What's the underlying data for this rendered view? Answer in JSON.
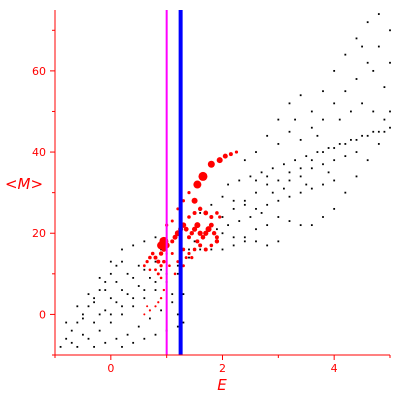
{
  "chart_data": {
    "type": "scatter",
    "xlabel": "E",
    "ylabel": "<M>",
    "xlim": [
      -1.0,
      5.0
    ],
    "ylim": [
      -10,
      75
    ],
    "xticks": [
      0,
      2,
      4
    ],
    "yticks": [
      0,
      20,
      40,
      60
    ],
    "grid": false,
    "colors": {
      "axis": "#ff0000",
      "small_points": "#000000",
      "large_points": "#ff0000",
      "line_1": "#ff00ff",
      "line_2": "#0000ff"
    },
    "vertical_lines": [
      {
        "x": 1.0,
        "color": "#ff00ff"
      },
      {
        "x": 1.25,
        "color": "#0000ff"
      }
    ],
    "series": [
      {
        "color": "#000000",
        "marker": "dot",
        "points": [
          [
            -0.9,
            -8
          ],
          [
            -0.8,
            -6
          ],
          [
            -0.7,
            -4
          ],
          [
            -0.6,
            -2
          ],
          [
            -0.5,
            0
          ],
          [
            -0.4,
            2
          ],
          [
            -0.3,
            4
          ],
          [
            -0.2,
            6
          ],
          [
            -0.1,
            8
          ],
          [
            0.0,
            10
          ],
          [
            0.1,
            12
          ],
          [
            0.2,
            13
          ],
          [
            -0.7,
            -7
          ],
          [
            -0.5,
            -5
          ],
          [
            -0.3,
            -2
          ],
          [
            -0.1,
            1
          ],
          [
            0.1,
            3
          ],
          [
            0.3,
            5
          ],
          [
            0.5,
            7
          ],
          [
            0.7,
            9
          ],
          [
            0.9,
            11
          ],
          [
            -0.6,
            -8
          ],
          [
            -0.4,
            -6
          ],
          [
            -0.2,
            -4
          ],
          [
            0.0,
            -2
          ],
          [
            0.2,
            0
          ],
          [
            0.4,
            2
          ],
          [
            0.6,
            4
          ],
          [
            0.8,
            6
          ],
          [
            1.0,
            8
          ],
          [
            1.2,
            10
          ],
          [
            -0.3,
            -8
          ],
          [
            -0.1,
            -7
          ],
          [
            0.1,
            -6
          ],
          [
            0.3,
            -5
          ],
          [
            0.5,
            -3
          ],
          [
            0.7,
            -1
          ],
          [
            0.9,
            1
          ],
          [
            1.1,
            3
          ],
          [
            1.3,
            5
          ],
          [
            0.2,
            -8
          ],
          [
            0.4,
            -7
          ],
          [
            0.6,
            -6
          ],
          [
            0.8,
            -5
          ],
          [
            1.0,
            -4
          ],
          [
            1.2,
            -3
          ],
          [
            -0.8,
            -2
          ],
          [
            -0.6,
            2
          ],
          [
            -0.4,
            5
          ],
          [
            -0.2,
            9
          ],
          [
            0.0,
            13
          ],
          [
            0.2,
            16
          ],
          [
            0.4,
            17
          ],
          [
            0.6,
            18
          ],
          [
            0.8,
            19
          ],
          [
            -0.5,
            -1
          ],
          [
            -0.3,
            3
          ],
          [
            -0.1,
            6
          ],
          [
            0.1,
            8
          ],
          [
            0.3,
            10
          ],
          [
            0.5,
            12
          ],
          [
            0.7,
            14
          ],
          [
            0.9,
            16
          ],
          [
            0.0,
            4
          ],
          [
            0.2,
            6
          ],
          [
            0.4,
            9
          ],
          [
            0.6,
            11
          ],
          [
            0.8,
            13
          ],
          [
            1.0,
            15
          ],
          [
            1.1,
            5
          ],
          [
            1.2,
            0
          ],
          [
            1.3,
            -2
          ],
          [
            -0.2,
            0
          ],
          [
            0.0,
            0
          ],
          [
            0.2,
            2
          ],
          [
            0.4,
            4
          ],
          [
            0.6,
            6
          ],
          [
            0.8,
            8
          ],
          [
            1.0,
            10
          ],
          [
            1.2,
            12
          ],
          [
            1.4,
            14
          ],
          [
            1.6,
            16
          ],
          [
            1.4,
            16
          ],
          [
            1.5,
            18
          ],
          [
            1.6,
            20
          ],
          [
            1.8,
            22
          ],
          [
            2.0,
            24
          ],
          [
            2.2,
            26
          ],
          [
            2.4,
            28
          ],
          [
            2.6,
            30
          ],
          [
            2.8,
            32
          ],
          [
            3.0,
            33
          ],
          [
            3.2,
            35
          ],
          [
            3.4,
            36
          ],
          [
            3.6,
            38
          ],
          [
            3.8,
            40
          ],
          [
            4.0,
            41
          ],
          [
            4.2,
            42
          ],
          [
            4.4,
            43
          ],
          [
            4.6,
            44
          ],
          [
            4.8,
            45
          ],
          [
            5.0,
            46
          ],
          [
            1.6,
            25
          ],
          [
            1.8,
            27
          ],
          [
            2.0,
            29
          ],
          [
            2.2,
            28
          ],
          [
            2.4,
            27
          ],
          [
            2.6,
            26
          ],
          [
            2.8,
            27
          ],
          [
            3.0,
            28
          ],
          [
            3.2,
            29
          ],
          [
            3.4,
            30
          ],
          [
            3.6,
            31
          ],
          [
            3.8,
            32
          ],
          [
            4.0,
            33
          ],
          [
            2.0,
            20
          ],
          [
            2.2,
            19
          ],
          [
            2.4,
            18
          ],
          [
            2.6,
            18
          ],
          [
            2.8,
            17
          ],
          [
            3.0,
            18
          ],
          [
            1.8,
            16
          ],
          [
            2.0,
            16
          ],
          [
            2.2,
            17
          ],
          [
            2.4,
            19
          ],
          [
            2.6,
            21
          ],
          [
            2.8,
            22
          ],
          [
            2.1,
            32
          ],
          [
            2.3,
            33
          ],
          [
            2.5,
            34
          ],
          [
            2.7,
            35
          ],
          [
            2.9,
            36
          ],
          [
            3.1,
            37
          ],
          [
            3.3,
            38
          ],
          [
            3.5,
            39
          ],
          [
            3.7,
            40
          ],
          [
            3.9,
            41
          ],
          [
            4.1,
            42
          ],
          [
            4.3,
            43
          ],
          [
            4.5,
            44
          ],
          [
            4.7,
            45
          ],
          [
            4.9,
            45
          ],
          [
            2.4,
            38
          ],
          [
            2.6,
            40
          ],
          [
            2.8,
            44
          ],
          [
            3.0,
            48
          ],
          [
            3.2,
            52
          ],
          [
            3.4,
            54
          ],
          [
            3.6,
            50
          ],
          [
            3.8,
            48
          ],
          [
            4.0,
            52
          ],
          [
            4.2,
            55
          ],
          [
            4.4,
            58
          ],
          [
            4.6,
            62
          ],
          [
            4.8,
            66
          ],
          [
            5.0,
            70
          ],
          [
            3.0,
            24
          ],
          [
            3.2,
            23
          ],
          [
            3.4,
            22
          ],
          [
            3.6,
            22
          ],
          [
            3.8,
            24
          ],
          [
            4.0,
            26
          ],
          [
            4.2,
            30
          ],
          [
            4.4,
            34
          ],
          [
            4.6,
            38
          ],
          [
            4.8,
            42
          ],
          [
            5.0,
            50
          ],
          [
            3.2,
            45
          ],
          [
            3.4,
            43
          ],
          [
            3.6,
            46
          ],
          [
            3.8,
            55
          ],
          [
            4.0,
            60
          ],
          [
            4.2,
            64
          ],
          [
            4.4,
            68
          ],
          [
            4.6,
            72
          ],
          [
            4.8,
            74
          ],
          [
            4.5,
            66
          ],
          [
            4.7,
            60
          ],
          [
            4.9,
            56
          ],
          [
            5.0,
            62
          ],
          [
            3.0,
            42
          ],
          [
            3.3,
            48
          ],
          [
            3.7,
            44
          ],
          [
            4.1,
            48
          ],
          [
            4.3,
            50
          ],
          [
            4.5,
            52
          ],
          [
            4.7,
            50
          ],
          [
            4.9,
            48
          ],
          [
            2.9,
            30
          ],
          [
            3.1,
            31
          ],
          [
            3.5,
            32
          ],
          [
            3.9,
            35
          ],
          [
            2.5,
            24
          ],
          [
            2.7,
            25
          ],
          [
            2.3,
            23
          ],
          [
            2.1,
            22
          ],
          [
            1.9,
            21
          ],
          [
            2.6,
            33
          ],
          [
            2.8,
            34
          ],
          [
            3.2,
            33
          ],
          [
            3.4,
            34
          ],
          [
            3.6,
            36
          ],
          [
            3.8,
            37
          ],
          [
            4.0,
            38
          ],
          [
            4.2,
            39
          ],
          [
            4.4,
            40
          ]
        ]
      },
      {
        "color": "#ff0000",
        "marker": "filled-circle",
        "points": [
          [
            0.6,
            12,
            1.4
          ],
          [
            0.65,
            13,
            1.6
          ],
          [
            0.7,
            14,
            1.8
          ],
          [
            0.75,
            15,
            1.8
          ],
          [
            0.8,
            14,
            2
          ],
          [
            0.85,
            13,
            2
          ],
          [
            0.9,
            15,
            2.2
          ],
          [
            0.95,
            16,
            2.4
          ],
          [
            1.0,
            17,
            3
          ],
          [
            0.9,
            17,
            4
          ],
          [
            0.95,
            18,
            4.5
          ],
          [
            0.7,
            11,
            1.3
          ],
          [
            0.8,
            11,
            1.4
          ],
          [
            0.9,
            12,
            1.6
          ],
          [
            0.85,
            10,
            1.5
          ],
          [
            0.95,
            13,
            1.8
          ],
          [
            0.9,
            9,
            1.3
          ],
          [
            0.95,
            6,
            1.2
          ],
          [
            0.9,
            4,
            1.2
          ],
          [
            0.85,
            3,
            1.1
          ],
          [
            0.8,
            2,
            1.1
          ],
          [
            0.7,
            1,
            1.1
          ],
          [
            0.6,
            0,
            1
          ],
          [
            0.65,
            2,
            1
          ],
          [
            1.1,
            18,
            2
          ],
          [
            1.15,
            19,
            2.5
          ],
          [
            1.2,
            20,
            3
          ],
          [
            1.25,
            21,
            2.5
          ],
          [
            1.3,
            22,
            2.8
          ],
          [
            1.35,
            21,
            2.4
          ],
          [
            1.4,
            19,
            2
          ],
          [
            1.45,
            20,
            2.2
          ],
          [
            1.5,
            21,
            2.6
          ],
          [
            1.55,
            22,
            3
          ],
          [
            1.6,
            20,
            2.6
          ],
          [
            1.65,
            19,
            2.3
          ],
          [
            1.7,
            20,
            2.6
          ],
          [
            1.75,
            21,
            3
          ],
          [
            1.8,
            22,
            2.4
          ],
          [
            1.85,
            20,
            2.2
          ],
          [
            1.9,
            19,
            2
          ],
          [
            1.4,
            24,
            1.8
          ],
          [
            1.5,
            25,
            2
          ],
          [
            1.6,
            26,
            2.2
          ],
          [
            1.7,
            25,
            2.4
          ],
          [
            1.8,
            24,
            2
          ],
          [
            1.9,
            25,
            1.8
          ],
          [
            1.95,
            24,
            1.6
          ],
          [
            1.3,
            16,
            1.8
          ],
          [
            1.4,
            15,
            1.6
          ],
          [
            1.5,
            16,
            1.8
          ],
          [
            1.6,
            17,
            2
          ],
          [
            1.7,
            16,
            2
          ],
          [
            1.8,
            17,
            1.8
          ],
          [
            1.9,
            18,
            2.2
          ],
          [
            1.55,
            18,
            2
          ],
          [
            1.45,
            14,
            1.6
          ],
          [
            1.35,
            14,
            1.5
          ],
          [
            1.1,
            15,
            1.5
          ],
          [
            1.2,
            13,
            1.5
          ],
          [
            1.3,
            12,
            1.5
          ],
          [
            1.05,
            12,
            1.3
          ],
          [
            1.15,
            10,
            1.3
          ],
          [
            1.25,
            8,
            1.3
          ],
          [
            1.5,
            28,
            3
          ],
          [
            1.55,
            32,
            4
          ],
          [
            1.65,
            34,
            4.5
          ],
          [
            1.8,
            37,
            3.5
          ],
          [
            1.95,
            38,
            3
          ],
          [
            2.05,
            39,
            2.5
          ],
          [
            2.15,
            39.5,
            2
          ],
          [
            2.25,
            40,
            1.6
          ],
          [
            1.2,
            26,
            1.5
          ],
          [
            1.3,
            28,
            1.6
          ],
          [
            1.4,
            30,
            1.6
          ],
          [
            1.1,
            23,
            1.5
          ],
          [
            1.0,
            22,
            1.6
          ]
        ]
      }
    ]
  }
}
